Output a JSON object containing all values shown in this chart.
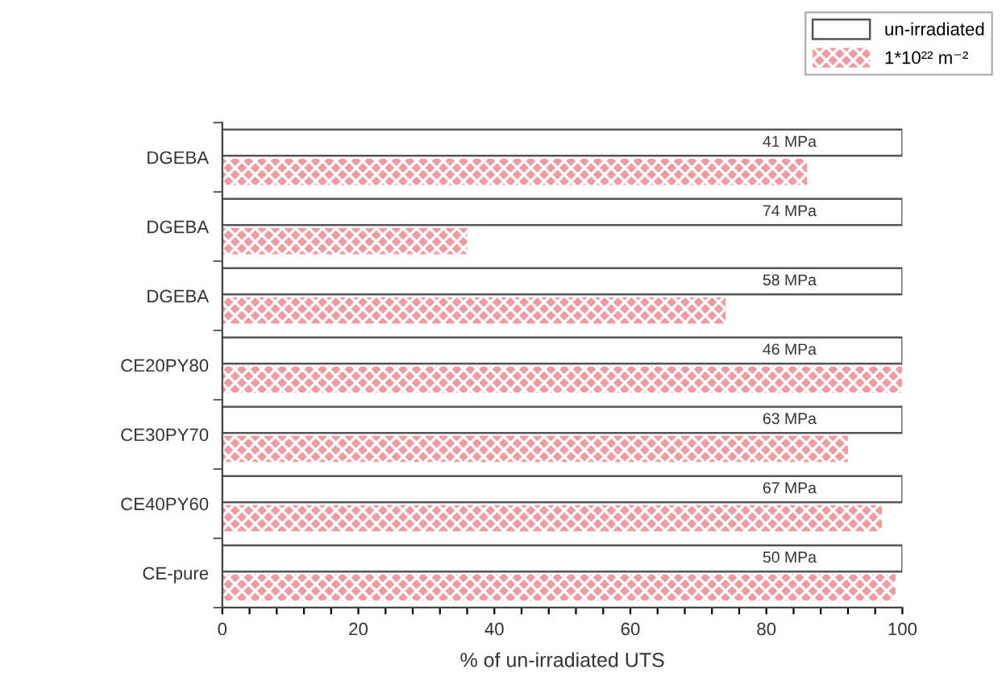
{
  "chart_data": {
    "type": "bar",
    "orientation": "horizontal",
    "categories": [
      "DGEBA",
      "DGEBA",
      "DGEBA",
      "CE20PY80",
      "CE30PY70",
      "CE40PY60",
      "CE-pure"
    ],
    "xlabel": "% of un-irradiated UTS",
    "xlim": [
      0,
      100
    ],
    "xticks": [
      0,
      {
        "value": 4,
        "label": null
      },
      {
        "value": 8,
        "label": null
      },
      {
        "value": 12,
        "label": null
      },
      {
        "value": 16,
        "label": null
      },
      20,
      {
        "value": 24,
        "label": null
      },
      {
        "value": 28,
        "label": null
      },
      {
        "value": 32,
        "label": null
      },
      {
        "value": 36,
        "label": null
      },
      40,
      {
        "value": 44,
        "label": null
      },
      {
        "value": 48,
        "label": null
      },
      {
        "value": 52,
        "label": null
      },
      {
        "value": 56,
        "label": null
      },
      60,
      {
        "value": 64,
        "label": null
      },
      {
        "value": 68,
        "label": null
      },
      {
        "value": 72,
        "label": null
      },
      {
        "value": 76,
        "label": null
      },
      80,
      {
        "value": 84,
        "label": null
      },
      {
        "value": 88,
        "label": null
      },
      {
        "value": 92,
        "label": null
      },
      {
        "value": 96,
        "label": null
      },
      100
    ],
    "series": [
      {
        "name": "un-irradiated",
        "color": "#ffffff",
        "values": [
          100,
          100,
          100,
          100,
          100,
          100,
          100
        ]
      },
      {
        "name": "1*10²² m⁻²",
        "color": "#ee9ca1",
        "values": [
          86,
          36,
          74,
          100,
          92,
          97,
          99
        ]
      }
    ],
    "annotations": [
      "41 MPa",
      "74 MPa",
      "58 MPa",
      "46 MPa",
      "63 MPa",
      "67 MPa",
      "50 MPa"
    ],
    "legend": "top right",
    "grid": false
  }
}
